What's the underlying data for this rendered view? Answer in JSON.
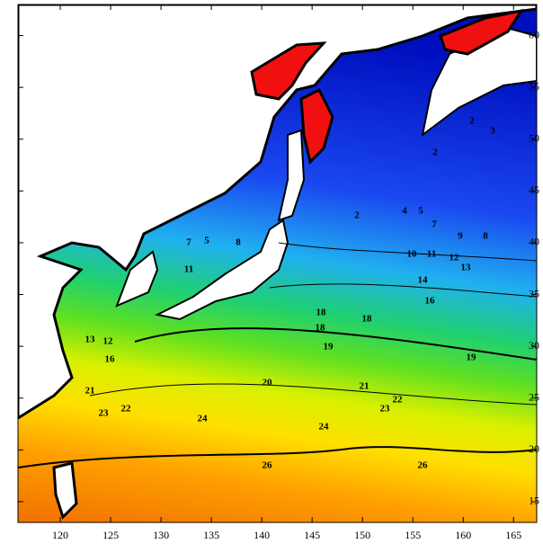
{
  "map_data": {
    "xlim": [
      115.8,
      167.3
    ],
    "ylim": [
      13,
      63
    ],
    "xticks": [
      120,
      125,
      130,
      135,
      140,
      145,
      150,
      155,
      160,
      165
    ],
    "yticks": [
      15,
      20,
      25,
      30,
      35,
      40,
      45,
      50,
      55,
      60
    ],
    "contour_labels": [
      2,
      3,
      2,
      2,
      4,
      5,
      7,
      8,
      9,
      10,
      11,
      12,
      13,
      14,
      16,
      18,
      18,
      18,
      19,
      19,
      21,
      20,
      22,
      23,
      24,
      24,
      26,
      26,
      7,
      5,
      8,
      11,
      12,
      13,
      16,
      21,
      22,
      23
    ]
  }
}
